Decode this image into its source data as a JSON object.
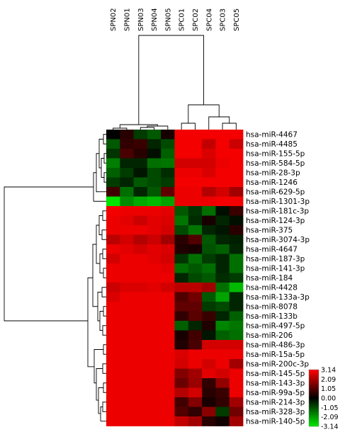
{
  "chart_data": {
    "type": "heatmap",
    "columns": [
      "SPN02",
      "SPN01",
      "SPN03",
      "SPN04",
      "SPN05",
      "SPC01",
      "SPC02",
      "SPC04",
      "SPC03",
      "SPC05"
    ],
    "rows": [
      "hsa-miR-4467",
      "hsa-miR-4485",
      "hsa-miR-155-5p",
      "hsa-miR-584-5p",
      "hsa-miR-28-3p",
      "hsa-miR-1246",
      "hsa-miR-629-5p",
      "hsa-miR-1301-3p",
      "hsa-miR-181c-3p",
      "hsa-miR-124-3p",
      "hsa-miR-375",
      "hsa-miR-3074-3p",
      "hsa-miR-4647",
      "hsa-miR-187-3p",
      "hsa-miR-141-3p",
      "hsa-miR-184",
      "hsa-miR-4428",
      "hsa-miR-133a-3p",
      "hsa-miR-8078",
      "hsa-miR-133b",
      "hsa-miR-497-5p",
      "hsa-miR-206",
      "hsa-miR-486-3p",
      "hsa-miR-15a-5p",
      "hsa-miR-200c-3p",
      "hsa-miR-145-5p",
      "hsa-miR-143-3p",
      "hsa-miR-99a-5p",
      "hsa-miR-214-3p",
      "hsa-miR-328-3p",
      "hsa-miR-140-5p"
    ],
    "values": [
      [
        0.0,
        0.5,
        -0.8,
        -1.2,
        0.3,
        3.0,
        3.0,
        3.0,
        3.0,
        3.0
      ],
      [
        -1.2,
        0.6,
        0.7,
        -0.5,
        -1.0,
        3.0,
        3.0,
        2.4,
        3.0,
        2.5
      ],
      [
        -0.7,
        0.9,
        0.5,
        -0.2,
        -1.3,
        3.0,
        3.0,
        2.7,
        3.0,
        3.0
      ],
      [
        -1.7,
        -0.5,
        -0.5,
        -1.5,
        -1.6,
        2.6,
        2.6,
        2.6,
        2.9,
        3.0
      ],
      [
        -1.3,
        -0.8,
        -0.3,
        -1.0,
        -0.6,
        2.9,
        2.9,
        2.7,
        3.0,
        3.0
      ],
      [
        -0.8,
        -0.5,
        -1.2,
        -1.0,
        -0.8,
        3.0,
        3.0,
        3.0,
        3.0,
        3.0
      ],
      [
        0.8,
        -1.5,
        -0.5,
        -1.2,
        1.2,
        2.9,
        2.9,
        2.2,
        2.6,
        2.0
      ],
      [
        -3.1,
        -1.9,
        -2.3,
        -2.5,
        -2.2,
        2.9,
        2.9,
        2.9,
        3.0,
        3.0
      ],
      [
        3.0,
        2.9,
        2.9,
        2.9,
        2.8,
        -1.2,
        -0.7,
        -1.5,
        -0.2,
        0.7
      ],
      [
        2.9,
        2.8,
        2.5,
        2.8,
        2.7,
        -1.6,
        -0.6,
        0.3,
        -0.5,
        -0.2
      ],
      [
        2.9,
        2.9,
        2.9,
        2.8,
        2.6,
        -1.0,
        -1.6,
        -0.5,
        -0.3,
        0.5
      ],
      [
        2.3,
        2.6,
        2.2,
        2.5,
        2.0,
        0.5,
        1.0,
        -1.2,
        -0.5,
        -0.4
      ],
      [
        2.9,
        2.8,
        2.6,
        2.8,
        2.7,
        0.4,
        0.3,
        -1.1,
        -1.3,
        -0.5
      ],
      [
        2.6,
        2.9,
        2.9,
        2.8,
        2.6,
        -0.7,
        -1.5,
        -0.8,
        -0.5,
        -1.5
      ],
      [
        2.9,
        2.9,
        2.9,
        2.9,
        2.8,
        -1.5,
        -1.2,
        -1.5,
        -0.5,
        -1.5
      ],
      [
        2.9,
        2.9,
        2.9,
        2.9,
        2.9,
        -0.5,
        -1.0,
        -1.2,
        -0.6,
        -0.8
      ],
      [
        2.5,
        2.7,
        2.7,
        2.8,
        2.6,
        2.3,
        2.3,
        2.0,
        -1.5,
        -2.5
      ],
      [
        2.7,
        2.9,
        2.9,
        2.9,
        2.9,
        1.0,
        1.4,
        -1.2,
        -2.2,
        -0.5
      ],
      [
        2.9,
        2.9,
        2.9,
        2.9,
        2.9,
        1.2,
        1.2,
        -0.8,
        -1.0,
        -0.5
      ],
      [
        2.9,
        2.9,
        2.9,
        2.9,
        2.9,
        0.6,
        1.1,
        0.7,
        -0.5,
        -1.3
      ],
      [
        2.9,
        2.9,
        2.9,
        2.9,
        2.9,
        -1.3,
        -0.5,
        0.4,
        -1.8,
        -1.6
      ],
      [
        2.9,
        2.9,
        2.9,
        2.9,
        2.9,
        0.3,
        0.8,
        -0.3,
        -1.3,
        -1.5
      ],
      [
        2.9,
        2.9,
        2.9,
        2.9,
        2.9,
        0.4,
        0.9,
        2.6,
        2.6,
        2.6
      ],
      [
        2.9,
        2.9,
        2.9,
        2.9,
        2.9,
        2.7,
        2.9,
        2.9,
        2.9,
        2.9
      ],
      [
        2.9,
        2.9,
        2.9,
        2.9,
        2.9,
        2.6,
        2.9,
        2.6,
        2.9,
        2.0
      ],
      [
        2.9,
        2.9,
        2.9,
        2.9,
        2.9,
        1.6,
        2.0,
        2.8,
        2.6,
        2.9
      ],
      [
        2.9,
        2.9,
        2.9,
        2.9,
        2.9,
        1.3,
        1.9,
        0.6,
        1.8,
        2.9
      ],
      [
        2.9,
        2.9,
        2.9,
        2.9,
        2.9,
        2.2,
        2.6,
        0.5,
        0.7,
        2.9
      ],
      [
        2.9,
        2.9,
        2.9,
        2.9,
        2.9,
        0.8,
        1.6,
        0.3,
        0.6,
        2.0
      ],
      [
        2.9,
        2.9,
        2.9,
        2.9,
        2.9,
        1.0,
        0.6,
        1.7,
        -0.8,
        1.4
      ],
      [
        2.9,
        2.9,
        2.9,
        2.9,
        2.9,
        2.4,
        2.0,
        0.5,
        0.2,
        2.0
      ]
    ],
    "color_scale": {
      "min": -3.14,
      "max": 3.14,
      "low_color": "#00e800",
      "mid_color": "#000000",
      "high_color": "#ff0000",
      "legend_ticks": [
        "3.14",
        "2.09",
        "1.05",
        "0.00",
        "-1.05",
        "-2.09",
        "-3.14"
      ]
    },
    "legend_placement": "bottom-right"
  }
}
